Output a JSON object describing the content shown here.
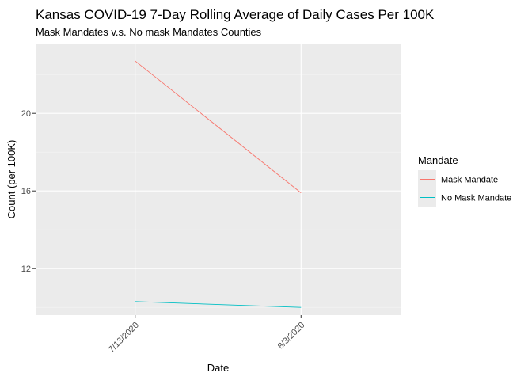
{
  "chart_data": {
    "type": "line",
    "title": "Kansas COVID-19 7-Day Rolling Average of Daily Cases Per 100K",
    "subtitle": "Mask Mandates v.s. No mask Mandates Counties",
    "xlabel": "Date",
    "ylabel": "Count (per 100K)",
    "x_tick_labels": [
      "7/13/2020",
      "8/3/2020"
    ],
    "x_range": [
      -0.6,
      1.6
    ],
    "y_ticks": [
      12,
      16,
      20
    ],
    "ylim": [
      9.6,
      23.6
    ],
    "grid": true,
    "legend": {
      "title": "Mandate",
      "placement": "right"
    },
    "series": [
      {
        "name": "Mask Mandate",
        "color": "#F8766D",
        "x": [
          0,
          1
        ],
        "values": [
          22.7,
          15.9
        ]
      },
      {
        "name": "No Mask Mandate",
        "color": "#00BFC4",
        "x": [
          0,
          1
        ],
        "values": [
          10.3,
          10.0
        ]
      }
    ]
  }
}
